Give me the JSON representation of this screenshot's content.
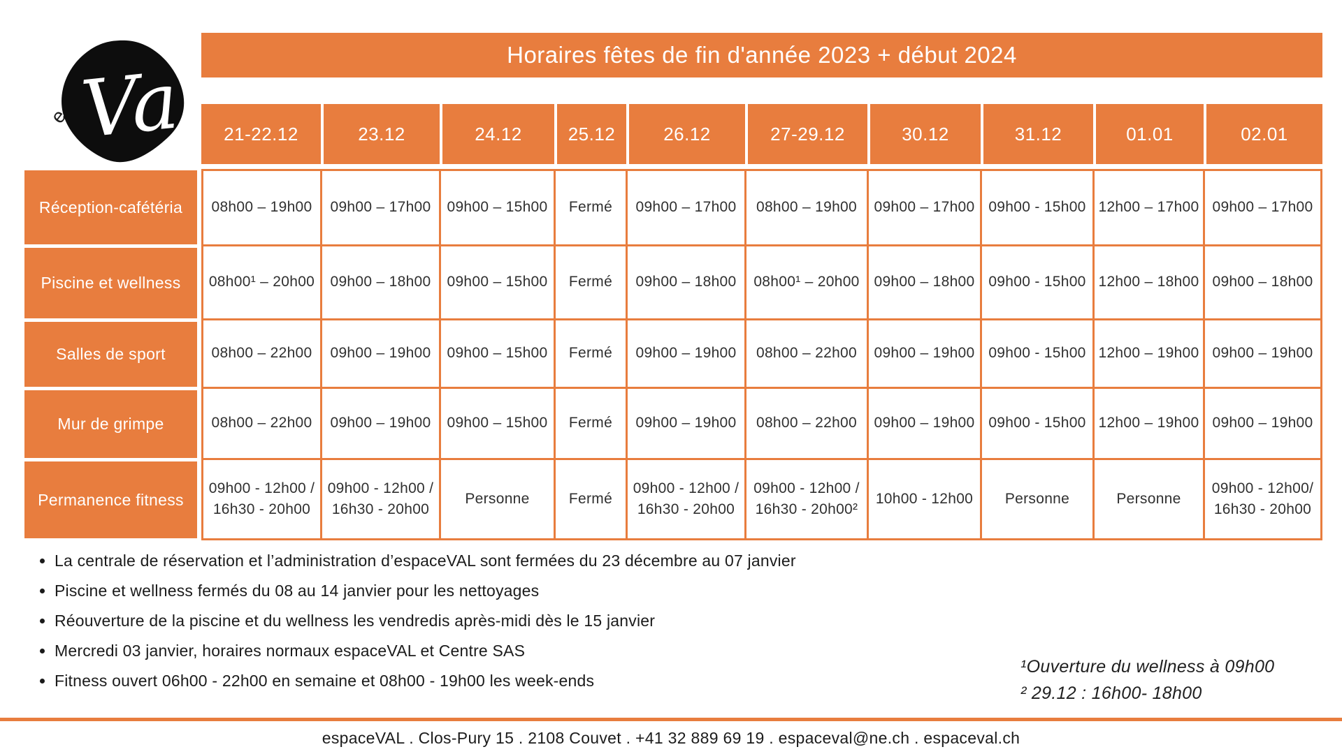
{
  "logo": {
    "brand_top": "espace",
    "brand_main": "Val"
  },
  "title": "Horaires fêtes de fin d'année 2023 + début 2024",
  "colors": {
    "accent": "#e87d3e",
    "cell_text": "#303030",
    "note_text": "#1b1b1b"
  },
  "table": {
    "columns": [
      "21-22.12",
      "23.12",
      "24.12",
      "25.12",
      "26.12",
      "27-29.12",
      "30.12",
      "31.12",
      "01.01",
      "02.01"
    ],
    "rows": [
      {
        "label": "Réception-cafétéria",
        "cells": [
          "08h00 – 19h00",
          "09h00 – 17h00",
          "09h00 – 15h00",
          "Fermé",
          "09h00 – 17h00",
          "08h00 – 19h00",
          "09h00 – 17h00",
          "09h00 - 15h00",
          "12h00 – 17h00",
          "09h00 – 17h00"
        ]
      },
      {
        "label": "Piscine et wellness",
        "cells": [
          "08h00¹ – 20h00",
          "09h00 – 18h00",
          "09h00 – 15h00",
          "Fermé",
          "09h00 – 18h00",
          "08h00¹ – 20h00",
          "09h00 – 18h00",
          "09h00 - 15h00",
          "12h00 – 18h00",
          "09h00 – 18h00"
        ]
      },
      {
        "label": "Salles de sport",
        "cells": [
          "08h00 – 22h00",
          "09h00 – 19h00",
          "09h00 – 15h00",
          "Fermé",
          "09h00 – 19h00",
          "08h00 – 22h00",
          "09h00 – 19h00",
          "09h00 - 15h00",
          "12h00 – 19h00",
          "09h00 – 19h00"
        ]
      },
      {
        "label": "Mur de grimpe",
        "cells": [
          "08h00 – 22h00",
          "09h00 – 19h00",
          "09h00 – 15h00",
          "Fermé",
          "09h00 – 19h00",
          "08h00 – 22h00",
          "09h00 – 19h00",
          "09h00 - 15h00",
          "12h00 – 19h00",
          "09h00 – 19h00"
        ]
      },
      {
        "label": "Permanence fitness",
        "cells": [
          "09h00 - 12h00 /\n16h30 - 20h00",
          "09h00 - 12h00 /\n16h30 - 20h00",
          "Personne",
          "Fermé",
          "09h00 - 12h00 /\n16h30 - 20h00",
          "09h00 - 12h00 /\n16h30 - 20h00²",
          "10h00 - 12h00",
          "Personne",
          "Personne",
          "09h00 - 12h00/\n16h30 - 20h00"
        ]
      }
    ]
  },
  "notes": [
    "La centrale de réservation et l’administration d’espaceVAL sont fermées du 23 décembre au 07 janvier",
    "Piscine et wellness fermés du 08 au 14 janvier pour les nettoyages",
    "Réouverture de la piscine et du wellness les vendredis après-midi dès le 15 janvier",
    "Mercredi 03 janvier, horaires normaux espaceVAL et Centre SAS",
    "Fitness ouvert 06h00 - 22h00 en semaine et 08h00 - 19h00 les week-ends"
  ],
  "footnotes": [
    "¹Ouverture du wellness à 09h00",
    "² 29.12 : 16h00- 18h00"
  ],
  "footer": "espaceVAL . Clos-Pury 15 . 2108 Couvet . +41 32 889 69 19 . espaceval@ne.ch . espaceval.ch"
}
